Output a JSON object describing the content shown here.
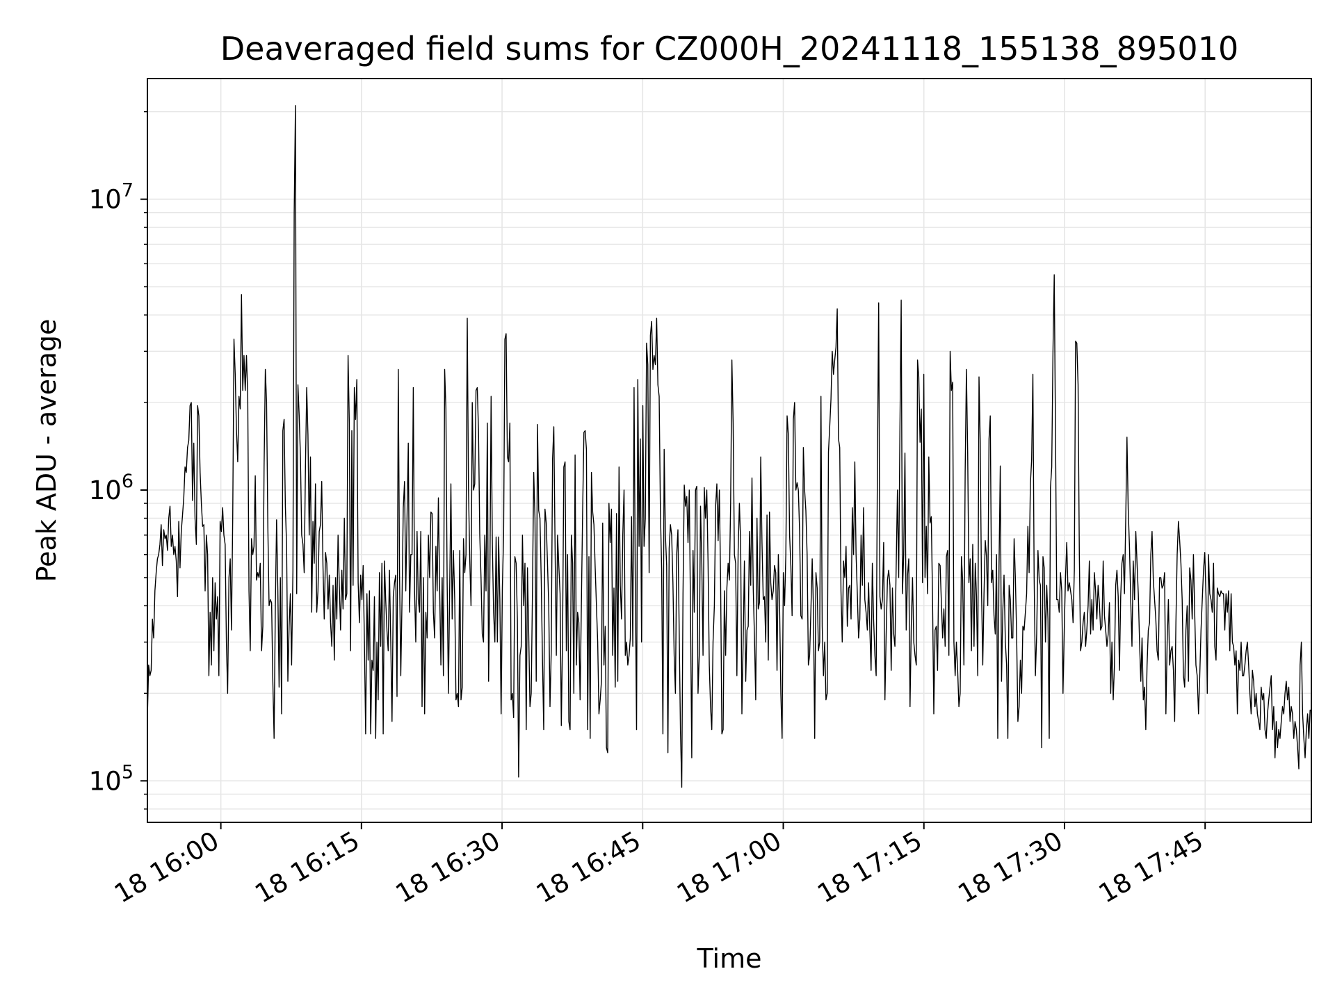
{
  "chart_data": {
    "type": "line",
    "title": "Deaveraged field sums for CZ000H_20241118_155138_895010",
    "xlabel": "Time",
    "ylabel": "Peak ADU - average",
    "yscale": "log",
    "grid": true,
    "line_color": "#000000",
    "grid_color": "#e6e6e6",
    "x_start": "2024-11-18 15:52:10",
    "x_end": "2024-11-18 17:56:20",
    "xlim": [
      "2024-11-18 15:52:10",
      "2024-11-18 17:56:20"
    ],
    "ylim": [
      72000,
      26000000
    ],
    "x_ticks": [
      {
        "time": "2024-11-18 16:00",
        "label": "18 16:00"
      },
      {
        "time": "2024-11-18 16:15",
        "label": "18 16:15"
      },
      {
        "time": "2024-11-18 16:30",
        "label": "18 16:30"
      },
      {
        "time": "2024-11-18 16:45",
        "label": "18 16:45"
      },
      {
        "time": "2024-11-18 17:00",
        "label": "18 17:00"
      },
      {
        "time": "2024-11-18 17:15",
        "label": "18 17:15"
      },
      {
        "time": "2024-11-18 17:30",
        "label": "18 17:30"
      },
      {
        "time": "2024-11-18 17:45",
        "label": "18 17:45"
      }
    ],
    "y_ticks": [
      {
        "value": 100000,
        "base": "10",
        "exp": "5"
      },
      {
        "value": 1000000,
        "base": "10",
        "exp": "6"
      },
      {
        "value": 10000000,
        "base": "10",
        "exp": "7"
      }
    ],
    "series": [
      {
        "values": [
          165000,
          250000,
          230000,
          240000,
          360000,
          310000,
          450000,
          520000,
          580000,
          600000,
          650000,
          760000,
          550000,
          730000,
          680000,
          700000,
          620000,
          800000,
          880000,
          640000,
          700000,
          600000,
          640000,
          570000,
          430000,
          780000,
          540000,
          720000,
          820000,
          940000,
          1200000,
          1150000,
          1400000,
          1480000,
          1950000,
          2000000,
          920000,
          1450000,
          800000,
          650000,
          1950000,
          1800000,
          1150000,
          900000,
          750000,
          760000,
          450000,
          700000,
          600000,
          230000,
          380000,
          250000,
          500000,
          280000,
          480000,
          360000,
          430000,
          230000,
          780000,
          720000,
          870000,
          700000,
          650000,
          300000,
          200000,
          500000,
          580000,
          330000,
          800000,
          3300000,
          2500000,
          1600000,
          1250000,
          2100000,
          1900000,
          4700000,
          2200000,
          2900000,
          2200000,
          2900000,
          2100000,
          450000,
          280000,
          680000,
          600000,
          640000,
          1120000,
          490000,
          520000,
          500000,
          560000,
          280000,
          340000,
          1200000,
          2600000,
          2000000,
          750000,
          400000,
          420000,
          410000,
          220000,
          140000,
          400000,
          790000,
          450000,
          210000,
          500000,
          170000,
          1600000,
          1750000,
          880000,
          640000,
          220000,
          340000,
          440000,
          250000,
          530000,
          9000000,
          21000000,
          440000,
          2300000,
          1800000,
          1300000,
          700000,
          650000,
          520000,
          1200000,
          2250000,
          1550000,
          700000,
          1300000,
          380000,
          780000,
          560000,
          1050000,
          380000,
          450000,
          720000,
          760000,
          1070000,
          550000,
          360000,
          610000,
          560000,
          390000,
          510000,
          350000,
          290000,
          470000,
          260000,
          500000,
          360000,
          700000,
          470000,
          330000,
          530000,
          390000,
          800000,
          420000,
          440000,
          2900000,
          1700000,
          280000,
          1600000,
          470000,
          2250000,
          1750000,
          2400000,
          480000,
          350000,
          510000,
          420000,
          550000,
          300000,
          145000,
          440000,
          260000,
          450000,
          145000,
          260000,
          240000,
          430000,
          140000,
          300000,
          190000,
          520000,
          290000,
          560000,
          145000,
          570000,
          420000,
          330000,
          280000,
          530000,
          300000,
          160000,
          430000,
          480000,
          510000,
          195000,
          2600000,
          520000,
          230000,
          420000,
          870000,
          1070000,
          450000,
          800000,
          1450000,
          380000,
          600000,
          600000,
          2250000,
          450000,
          300000,
          720000,
          420000,
          380000,
          720000,
          180000,
          500000,
          170000,
          380000,
          310000,
          700000,
          500000,
          840000,
          830000,
          380000,
          310000,
          640000,
          450000,
          940000,
          460000,
          250000,
          500000,
          230000,
          2600000,
          1900000,
          480000,
          200000,
          450000,
          1050000,
          360000,
          620000,
          420000,
          190000,
          200000,
          180000,
          620000,
          190000,
          210000,
          680000,
          520000,
          600000,
          3900000,
          1000000,
          580000,
          400000,
          2000000,
          1000000,
          1050000,
          2200000,
          2250000,
          1600000,
          700000,
          500000,
          320000,
          300000,
          700000,
          450000,
          1700000,
          220000,
          500000,
          2100000,
          650000,
          380000,
          300000,
          690000,
          300000,
          690000,
          420000,
          170000,
          460000,
          700000,
          3300000,
          3450000,
          1300000,
          1250000,
          1700000,
          190000,
          200000,
          165000,
          590000,
          560000,
          360000,
          103000,
          270000,
          290000,
          700000,
          400000,
          560000,
          150000,
          540000,
          320000,
          180000,
          200000,
          450000,
          1150000,
          800000,
          220000,
          1680000,
          850000,
          800000,
          490000,
          260000,
          150000,
          860000,
          770000,
          560000,
          400000,
          180000,
          280000,
          1280000,
          1650000,
          640000,
          270000,
          700000,
          550000,
          440000,
          155000,
          320000,
          1200000,
          1250000,
          280000,
          600000,
          160000,
          150000,
          700000,
          560000,
          200000,
          1320000,
          250000,
          380000,
          350000,
          190000,
          400000,
          830000,
          1580000,
          1600000,
          1380000,
          150000,
          590000,
          140000,
          1150000,
          840000,
          760000,
          540000,
          400000,
          300000,
          170000,
          190000,
          220000,
          770000,
          250000,
          340000,
          130000,
          125000,
          900000,
          660000,
          860000,
          270000,
          460000,
          210000,
          830000,
          220000,
          1200000,
          470000,
          360000,
          700000,
          1000000,
          270000,
          300000,
          250000,
          270000,
          310000,
          810000,
          290000,
          2250000,
          480000,
          150000,
          2400000,
          640000,
          1500000,
          300000,
          1950000,
          640000,
          800000,
          3200000,
          2700000,
          520000,
          3400000,
          3800000,
          2600000,
          2900000,
          2700000,
          3900000,
          2300000,
          2100000,
          850000,
          530000,
          145000,
          1380000,
          700000,
          550000,
          125000,
          630000,
          760000,
          700000,
          480000,
          270000,
          200000,
          600000,
          730000,
          330000,
          150000,
          95000,
          440000,
          1040000,
          880000,
          950000,
          660000,
          1000000,
          380000,
          120000,
          620000,
          380000,
          1000000,
          1030000,
          200000,
          270000,
          880000,
          570000,
          270000,
          1020000,
          800000,
          1000000,
          570000,
          250000,
          180000,
          150000,
          300000,
          400000,
          880000,
          1050000,
          670000,
          1000000,
          480000,
          145000,
          150000,
          450000,
          270000,
          460000,
          560000,
          490000,
          900000,
          2800000,
          1700000,
          600000,
          560000,
          230000,
          620000,
          900000,
          660000,
          170000,
          300000,
          570000,
          220000,
          330000,
          340000,
          720000,
          470000,
          1100000,
          460000,
          310000,
          190000,
          800000,
          390000,
          410000,
          1300000,
          660000,
          420000,
          430000,
          300000,
          820000,
          260000,
          840000,
          480000,
          420000,
          450000,
          550000,
          520000,
          240000,
          600000,
          400000,
          200000,
          140000,
          520000,
          400000,
          600000,
          1800000,
          1550000,
          700000,
          550000,
          370000,
          1750000,
          2000000,
          1000000,
          1060000,
          1000000,
          720000,
          370000,
          360000,
          1400000,
          1000000,
          850000,
          600000,
          250000,
          270000,
          390000,
          580000,
          390000,
          140000,
          520000,
          460000,
          280000,
          300000,
          2100000,
          340000,
          230000,
          300000,
          190000,
          200000,
          1350000,
          1650000,
          2050000,
          3000000,
          2500000,
          2800000,
          3100000,
          4200000,
          1500000,
          1400000,
          450000,
          300000,
          570000,
          500000,
          640000,
          340000,
          460000,
          470000,
          360000,
          870000,
          600000,
          1250000,
          600000,
          440000,
          310000,
          360000,
          700000,
          470000,
          870000,
          420000,
          380000,
          330000,
          480000,
          330000,
          240000,
          560000,
          360000,
          270000,
          230000,
          1200000,
          4400000,
          430000,
          390000,
          420000,
          660000,
          190000,
          320000,
          490000,
          530000,
          470000,
          240000,
          460000,
          320000,
          290000,
          550000,
          1000000,
          500000,
          1650000,
          4500000,
          440000,
          600000,
          1340000,
          330000,
          510000,
          580000,
          180000,
          340000,
          500000,
          300000,
          270000,
          250000,
          2800000,
          2450000,
          1460000,
          1900000,
          480000,
          2500000,
          500000,
          750000,
          440000,
          1300000,
          770000,
          810000,
          420000,
          170000,
          330000,
          340000,
          240000,
          560000,
          550000,
          410000,
          310000,
          390000,
          290000,
          590000,
          620000,
          270000,
          3000000,
          2200000,
          2350000,
          300000,
          230000,
          300000,
          240000,
          180000,
          200000,
          590000,
          490000,
          250000,
          1150000,
          2600000,
          1350000,
          480000,
          580000,
          280000,
          650000,
          290000,
          560000,
          430000,
          230000,
          2450000,
          1450000,
          460000,
          250000,
          440000,
          670000,
          590000,
          400000,
          1500000,
          1800000,
          480000,
          530000,
          370000,
          320000,
          600000,
          140000,
          550000,
          1210000,
          220000,
          380000,
          510000,
          300000,
          250000,
          140000,
          470000,
          420000,
          310000,
          310000,
          680000,
          500000,
          320000,
          160000,
          180000,
          260000,
          200000,
          340000,
          330000,
          380000,
          440000,
          750000,
          520000,
          1050000,
          1270000,
          2500000,
          500000,
          230000,
          320000,
          620000,
          490000,
          470000,
          130000,
          590000,
          540000,
          300000,
          470000,
          360000,
          140000,
          1020000,
          1200000,
          3000000,
          5500000,
          1600000,
          420000,
          420000,
          380000,
          520000,
          450000,
          200000,
          330000,
          500000,
          660000,
          450000,
          480000,
          450000,
          420000,
          350000,
          530000,
          3250000,
          3200000,
          2300000,
          600000,
          280000,
          300000,
          350000,
          380000,
          290000,
          330000,
          400000,
          570000,
          320000,
          420000,
          330000,
          520000,
          450000,
          360000,
          470000,
          410000,
          330000,
          340000,
          570000,
          370000,
          330000,
          290000,
          320000,
          410000,
          200000,
          300000,
          190000,
          250000,
          470000,
          530000,
          430000,
          240000,
          430000,
          560000,
          600000,
          440000,
          780000,
          1520000,
          860000,
          640000,
          420000,
          290000,
          570000,
          420000,
          720000,
          560000,
          440000,
          300000,
          220000,
          310000,
          190000,
          210000,
          150000,
          250000,
          330000,
          350000,
          600000,
          720000,
          490000,
          420000,
          360000,
          280000,
          260000,
          500000,
          500000,
          460000,
          470000,
          520000,
          170000,
          300000,
          420000,
          250000,
          280000,
          290000,
          240000,
          160000,
          350000,
          600000,
          780000,
          670000,
          560000,
          420000,
          230000,
          210000,
          330000,
          400000,
          220000,
          540000,
          490000,
          360000,
          600000,
          380000,
          250000,
          230000,
          170000,
          230000,
          330000,
          420000,
          530000,
          610000,
          430000,
          200000,
          600000,
          440000,
          420000,
          380000,
          560000,
          290000,
          260000,
          460000,
          440000,
          430000,
          450000,
          440000,
          440000,
          330000,
          440000,
          380000,
          450000,
          280000,
          440000,
          300000,
          290000,
          250000,
          280000,
          170000,
          260000,
          240000,
          300000,
          230000,
          230000,
          250000,
          280000,
          300000,
          250000,
          200000,
          170000,
          240000,
          220000,
          180000,
          200000,
          170000,
          160000,
          150000,
          210000,
          190000,
          200000,
          150000,
          140000,
          170000,
          190000,
          210000,
          230000,
          150000,
          180000,
          120000,
          160000,
          130000,
          150000,
          140000,
          160000,
          180000,
          170000,
          200000,
          220000,
          190000,
          210000,
          160000,
          180000,
          170000,
          140000,
          160000,
          150000,
          130000,
          110000,
          250000,
          300000,
          170000,
          140000,
          120000,
          150000,
          170000,
          140000,
          175000,
          175000
        ]
      }
    ]
  }
}
